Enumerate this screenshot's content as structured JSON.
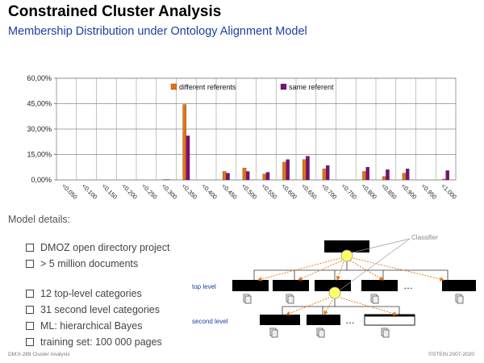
{
  "header": {
    "title": "Constrained Cluster Analysis",
    "subtitle": "Membership Distribution under Ontology Alignment Model"
  },
  "chart_data": {
    "type": "bar",
    "categories": [
      "<0.050",
      "<0.100",
      "<0.150",
      "<0.200",
      "<0.250",
      "<0.300",
      "<0.350",
      "<0.400",
      "<0.450",
      "<0.500",
      "<0.550",
      "<0.600",
      "<0.650",
      "<0.700",
      "<0.750",
      "<0.800",
      "<0.850",
      "<0.900",
      "<0.950",
      "<1.000"
    ],
    "series": [
      {
        "name": "different referents",
        "color": "#e8720c",
        "values": [
          0,
          0,
          0,
          0,
          0,
          0.2,
          44.5,
          0,
          5,
          7,
          3.5,
          10.5,
          12,
          6.5,
          0,
          5,
          2,
          4,
          0,
          0.5
        ]
      },
      {
        "name": "same referent",
        "color": "#7a0e7a",
        "values": [
          0,
          0,
          0,
          0,
          0,
          0.2,
          26,
          0,
          4,
          5,
          4.5,
          12,
          14,
          8.5,
          0,
          7.5,
          6,
          6.5,
          0,
          5.5
        ]
      }
    ],
    "yticks": [
      "0,00%",
      "15,00%",
      "30,00%",
      "45,00%",
      "60,00%"
    ],
    "ylim": [
      0,
      60
    ],
    "grid": true,
    "legend_position": "top"
  },
  "model": {
    "heading": "Model details:",
    "bullets": [
      "DMOZ open directory project",
      "> 5 million documents",
      "12 top-level categories",
      "31 second level categories",
      "ML: hierarchical Bayes",
      "training set: 100 000 pages"
    ]
  },
  "diagram": {
    "classifier_label": "Classifier",
    "top_level_label": "top level",
    "second_level_label": "second level",
    "ellipsis": "…",
    "node_color": "#000000",
    "classifier_color": "#ffff66",
    "arrow_color": "#e8720c"
  },
  "footer": {
    "left": "DM:II-289   Cluster Analysis",
    "right": "©STEIN 2007-2020"
  }
}
